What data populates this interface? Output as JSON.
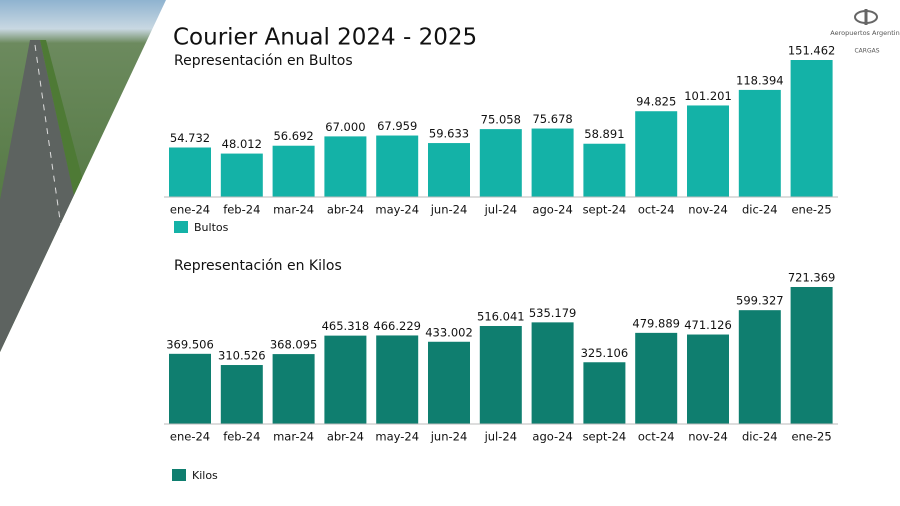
{
  "title": "Courier Anual 2024 - 2025",
  "logo": {
    "name": "Aeropuertos Argentina",
    "unit": "CARGAS"
  },
  "chart_data": [
    {
      "type": "bar",
      "title": "Representación en Bultos",
      "categories": [
        "ene-24",
        "feb-24",
        "mar-24",
        "abr-24",
        "may-24",
        "jun-24",
        "jul-24",
        "ago-24",
        "sept-24",
        "oct-24",
        "nov-24",
        "dic-24",
        "ene-25"
      ],
      "series": [
        {
          "name": "Bultos",
          "color": "#14b2a7",
          "values": [
            54732,
            48012,
            56692,
            67000,
            67959,
            59633,
            75058,
            75678,
            58891,
            94825,
            101201,
            118394,
            151462
          ],
          "value_labels": [
            "54.732",
            "48.012",
            "56.692",
            "67.000",
            "67.959",
            "59.633",
            "75.058",
            "75.678",
            "58.891",
            "94.825",
            "101.201",
            "118.394",
            "151.462"
          ]
        }
      ]
    },
    {
      "type": "bar",
      "title": "Representación en Kilos",
      "categories": [
        "ene-24",
        "feb-24",
        "mar-24",
        "abr-24",
        "may-24",
        "jun-24",
        "jul-24",
        "ago-24",
        "sept-24",
        "oct-24",
        "nov-24",
        "dic-24",
        "ene-25"
      ],
      "series": [
        {
          "name": "Kilos",
          "color": "#0f7e6f",
          "values": [
            369506,
            310526,
            368095,
            465318,
            466229,
            433002,
            516041,
            535179,
            325106,
            479889,
            471126,
            599327,
            721369
          ],
          "value_labels": [
            "369.506",
            "310.526",
            "368.095",
            "465.318",
            "466.229",
            "433.002",
            "516.041",
            "535.179",
            "325.106",
            "479.889",
            "471.126",
            "599.327",
            "721.369"
          ]
        }
      ]
    }
  ]
}
